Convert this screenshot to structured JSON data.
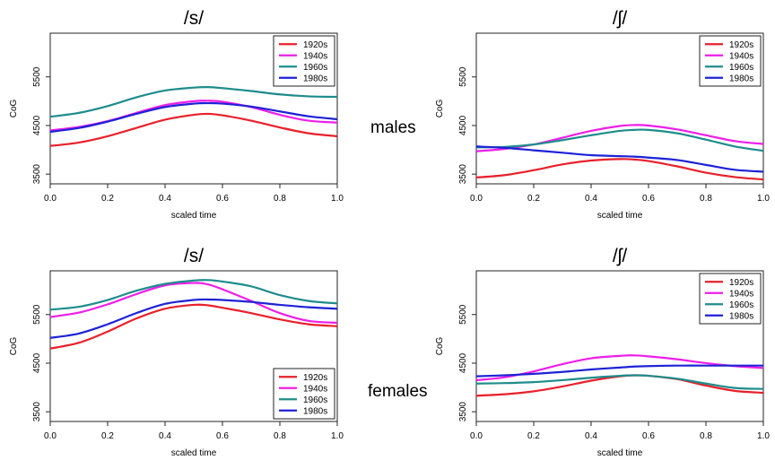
{
  "row_labels": {
    "males": "males",
    "females": "females"
  },
  "chart_data": [
    {
      "type": "line",
      "title": "/s/",
      "xlabel": "scaled time",
      "ylabel": "CoG",
      "xlim": [
        0,
        1
      ],
      "ylim": [
        3300,
        6400
      ],
      "xticks": [
        "0.0",
        "0.2",
        "0.4",
        "0.6",
        "0.8",
        "1.0"
      ],
      "yticks": [
        "3500",
        "4500",
        "5500"
      ],
      "legend_position": "top-right",
      "x": [
        0,
        0.1,
        0.2,
        0.3,
        0.4,
        0.5,
        0.55,
        0.6,
        0.7,
        0.8,
        0.9,
        1.0
      ],
      "series": [
        {
          "name": "1920s",
          "color": "#e8202a",
          "values": [
            4080,
            4150,
            4280,
            4450,
            4620,
            4720,
            4740,
            4710,
            4600,
            4460,
            4340,
            4280
          ]
        },
        {
          "name": "1940s",
          "color": "#ee1ee9",
          "values": [
            4400,
            4470,
            4590,
            4760,
            4920,
            5000,
            5010,
            4990,
            4880,
            4720,
            4600,
            4560
          ]
        },
        {
          "name": "1960s",
          "color": "#1e8c8c",
          "values": [
            4680,
            4760,
            4900,
            5080,
            5220,
            5280,
            5290,
            5270,
            5210,
            5140,
            5100,
            5090
          ]
        },
        {
          "name": "1980s",
          "color": "#1e22d6",
          "values": [
            4370,
            4450,
            4580,
            4740,
            4880,
            4950,
            4960,
            4950,
            4890,
            4790,
            4690,
            4630
          ]
        }
      ]
    },
    {
      "type": "line",
      "title": "/ʃ/",
      "xlabel": "scaled time",
      "ylabel": "CoG",
      "xlim": [
        0,
        1
      ],
      "ylim": [
        3300,
        6400
      ],
      "xticks": [
        "0.0",
        "0.2",
        "0.4",
        "0.6",
        "0.8",
        "1.0"
      ],
      "yticks": [
        "3500",
        "4500",
        "5500"
      ],
      "legend_position": "top-right",
      "x": [
        0,
        0.1,
        0.2,
        0.3,
        0.4,
        0.5,
        0.55,
        0.6,
        0.7,
        0.8,
        0.9,
        1.0
      ],
      "series": [
        {
          "name": "1920s",
          "color": "#e8202a",
          "values": [
            3430,
            3480,
            3580,
            3700,
            3780,
            3810,
            3800,
            3770,
            3660,
            3530,
            3440,
            3390
          ]
        },
        {
          "name": "1940s",
          "color": "#ee1ee9",
          "values": [
            3970,
            4020,
            4110,
            4250,
            4390,
            4490,
            4510,
            4500,
            4420,
            4300,
            4180,
            4120
          ]
        },
        {
          "name": "1960s",
          "color": "#1e8c8c",
          "values": [
            4050,
            4060,
            4110,
            4200,
            4300,
            4390,
            4410,
            4410,
            4340,
            4210,
            4070,
            3980
          ]
        },
        {
          "name": "1980s",
          "color": "#1e22d6",
          "values": [
            4070,
            4040,
            3990,
            3940,
            3890,
            3870,
            3860,
            3840,
            3790,
            3690,
            3590,
            3550
          ]
        }
      ]
    },
    {
      "type": "line",
      "title": "/s/",
      "xlabel": "scaled time",
      "ylabel": "CoG",
      "xlim": [
        0,
        1
      ],
      "ylim": [
        3300,
        6400
      ],
      "xticks": [
        "0.0",
        "0.2",
        "0.4",
        "0.6",
        "0.8",
        "1.0"
      ],
      "yticks": [
        "3500",
        "4500",
        "5500"
      ],
      "legend_position": "bottom-right",
      "x": [
        0,
        0.1,
        0.2,
        0.3,
        0.4,
        0.5,
        0.55,
        0.6,
        0.7,
        0.8,
        0.9,
        1.0
      ],
      "series": [
        {
          "name": "1920s",
          "color": "#e8202a",
          "values": [
            4800,
            4920,
            5150,
            5420,
            5620,
            5700,
            5690,
            5640,
            5530,
            5400,
            5300,
            5260
          ]
        },
        {
          "name": "1940s",
          "color": "#ee1ee9",
          "values": [
            5450,
            5540,
            5710,
            5920,
            6100,
            6150,
            6120,
            6020,
            5780,
            5530,
            5370,
            5330
          ]
        },
        {
          "name": "1960s",
          "color": "#1e8c8c",
          "values": [
            5600,
            5660,
            5800,
            5990,
            6130,
            6200,
            6210,
            6180,
            6080,
            5900,
            5780,
            5730
          ]
        },
        {
          "name": "1980s",
          "color": "#1e22d6",
          "values": [
            5020,
            5110,
            5300,
            5530,
            5720,
            5800,
            5810,
            5800,
            5760,
            5700,
            5650,
            5620
          ]
        }
      ]
    },
    {
      "type": "line",
      "title": "/ʃ/",
      "xlabel": "scaled time",
      "ylabel": "CoG",
      "xlim": [
        0,
        1
      ],
      "ylim": [
        3300,
        6400
      ],
      "xticks": [
        "0.0",
        "0.2",
        "0.4",
        "0.6",
        "0.8",
        "1.0"
      ],
      "yticks": [
        "3500",
        "4500",
        "5500"
      ],
      "legend_position": "top-right",
      "x": [
        0,
        0.1,
        0.2,
        0.3,
        0.4,
        0.5,
        0.55,
        0.6,
        0.7,
        0.8,
        0.9,
        1.0
      ],
      "series": [
        {
          "name": "1920s",
          "color": "#e8202a",
          "values": [
            3830,
            3860,
            3920,
            4020,
            4140,
            4230,
            4250,
            4240,
            4170,
            4040,
            3930,
            3890
          ]
        },
        {
          "name": "1940s",
          "color": "#ee1ee9",
          "values": [
            4150,
            4210,
            4330,
            4480,
            4600,
            4650,
            4660,
            4640,
            4580,
            4500,
            4440,
            4400
          ]
        },
        {
          "name": "1960s",
          "color": "#1e8c8c",
          "values": [
            4080,
            4090,
            4110,
            4150,
            4200,
            4240,
            4250,
            4240,
            4180,
            4080,
            3990,
            3970
          ]
        },
        {
          "name": "1980s",
          "color": "#1e22d6",
          "values": [
            4230,
            4250,
            4280,
            4320,
            4370,
            4410,
            4430,
            4440,
            4450,
            4450,
            4450,
            4450
          ]
        }
      ]
    }
  ]
}
